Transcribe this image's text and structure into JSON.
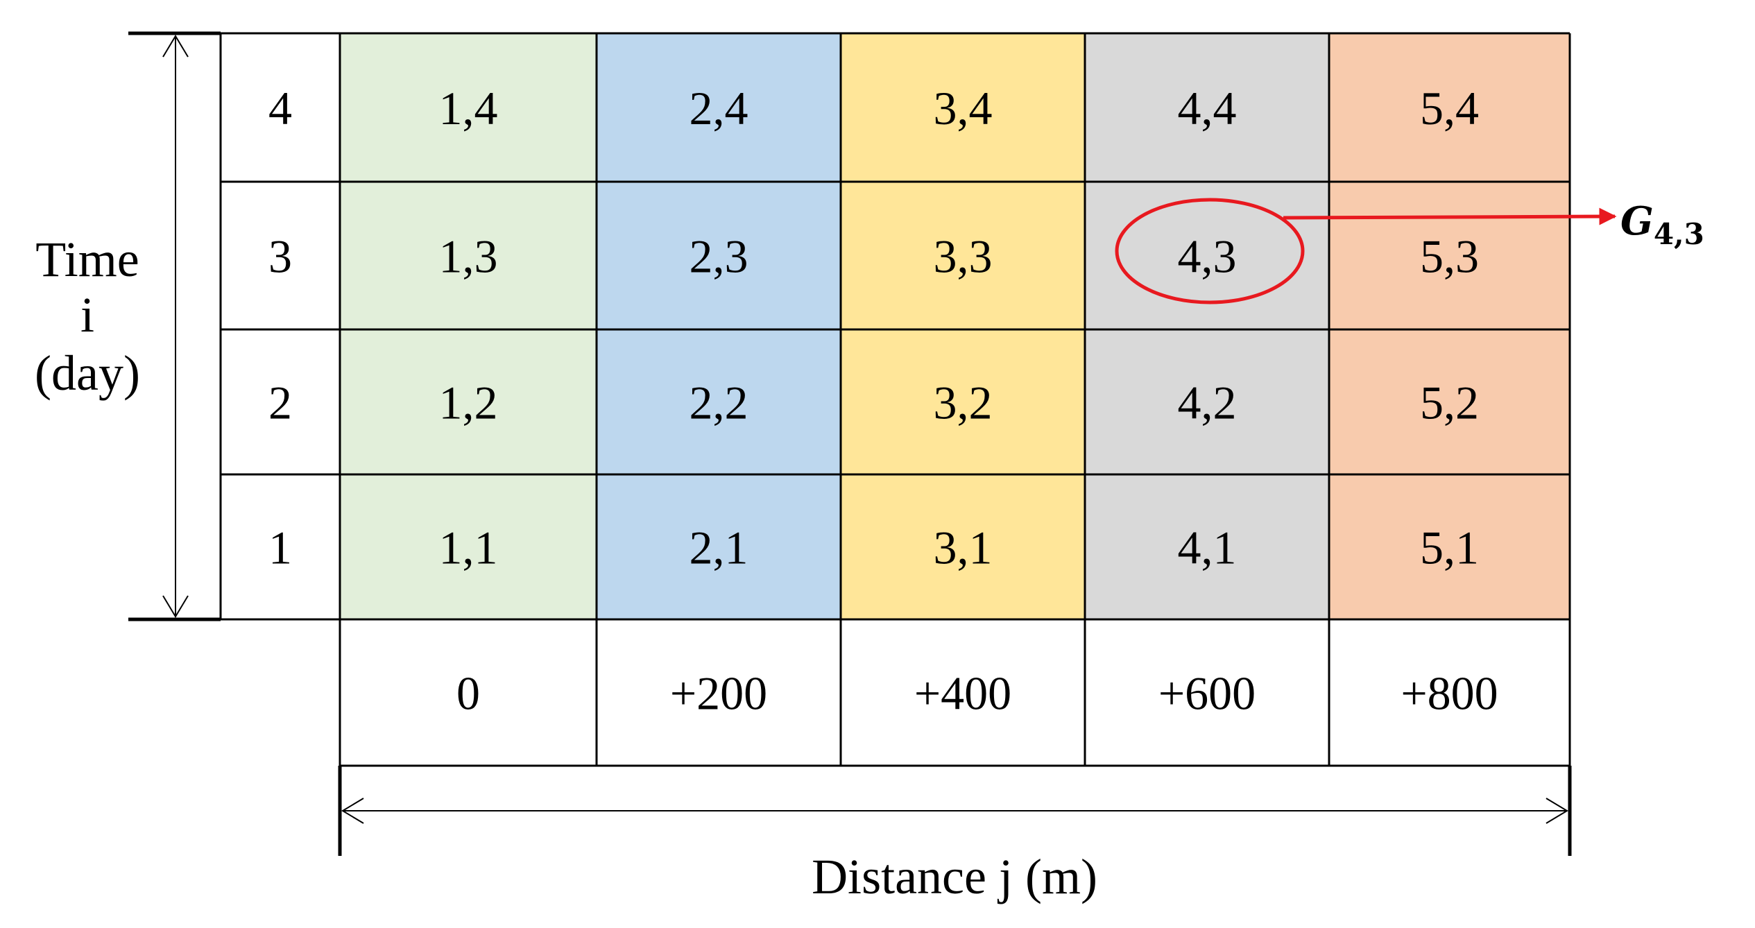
{
  "grid": {
    "time_values": [
      "4",
      "3",
      "2",
      "1"
    ],
    "distance_values": [
      "0",
      "+200",
      "+400",
      "+600",
      "+800"
    ],
    "column_colors": [
      "#e2efda",
      "#bdd7ee",
      "#ffe699",
      "#d9d9d9",
      "#f8cbad"
    ],
    "rows": [
      [
        "1,4",
        "2,4",
        "3,4",
        "4,4",
        "5,4"
      ],
      [
        "1,3",
        "2,3",
        "3,3",
        "4,3",
        "5,3"
      ],
      [
        "1,2",
        "2,2",
        "3,2",
        "4,2",
        "5,2"
      ],
      [
        "1,1",
        "2,1",
        "3,1",
        "4,1",
        "5,1"
      ]
    ]
  },
  "axes": {
    "time_label_line1": "Time",
    "time_label_line2": "i",
    "time_label_line3": "(day)",
    "distance_label": "Distance j (m)"
  },
  "highlight": {
    "cell": "4,3",
    "label_main": "G",
    "label_sub": "4,3",
    "color": "#e8191f"
  }
}
